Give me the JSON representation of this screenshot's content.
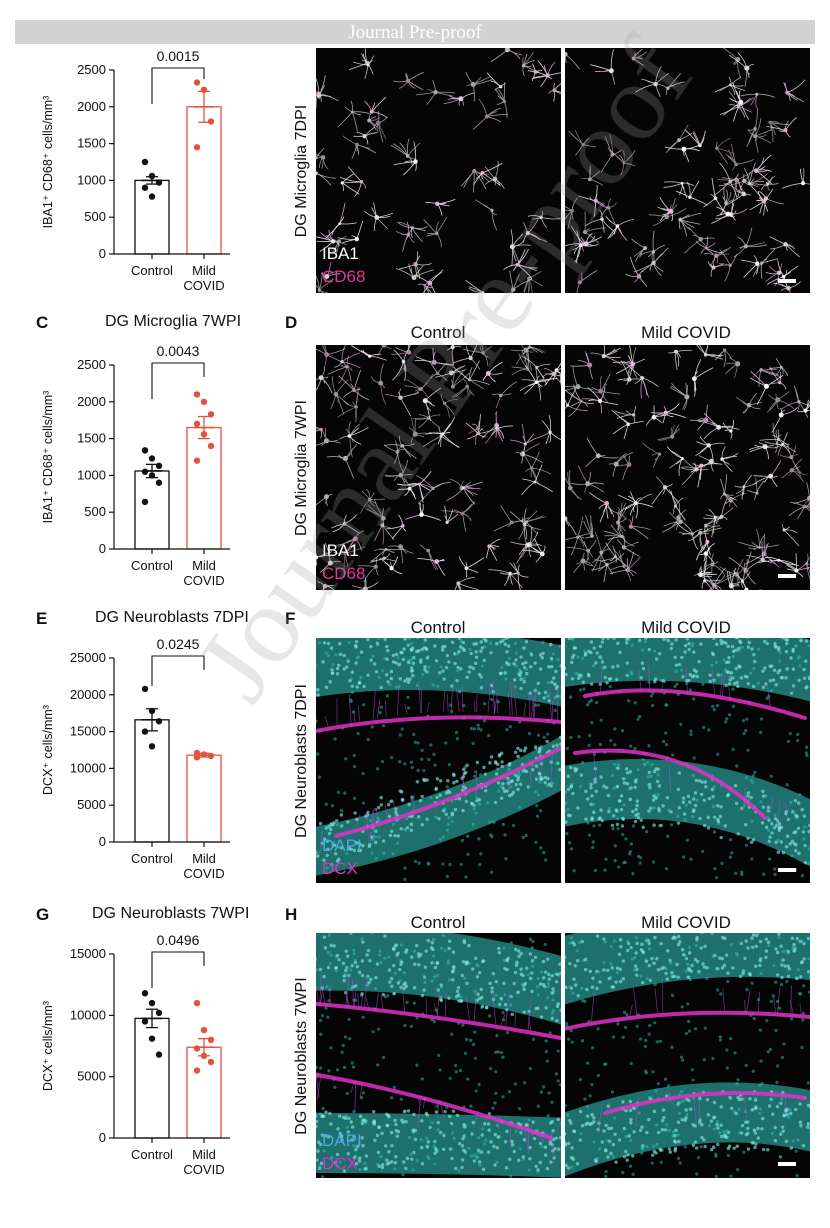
{
  "banner": {
    "text": "Journal Pre-proof"
  },
  "watermark": "Journal Pre-proof",
  "colors": {
    "control": "#111111",
    "covid": "#e0533d",
    "dapi": "#37d0c8",
    "dcx": "#e030c8",
    "iba1": "#ffffff",
    "cd68": "#e0389a"
  },
  "panels": {
    "C": {
      "letter": "C",
      "title": "DG Microglia 7WPI"
    },
    "D": {
      "letter": "D",
      "left_title": "Control",
      "right_title": "Mild COVID",
      "row_label": "DG Microglia 7WPI",
      "channel1": "IBA1",
      "channel2": "CD68"
    },
    "E": {
      "letter": "E",
      "title": "DG Neuroblasts 7DPI"
    },
    "F": {
      "letter": "F",
      "left_title": "Control",
      "right_title": "Mild COVID",
      "row_label": "DG Neuroblasts 7DPI",
      "channel1": "DAPI",
      "channel2": "DCX"
    },
    "G": {
      "letter": "G",
      "title": "DG Neuroblasts 7WPI"
    },
    "H": {
      "letter": "H",
      "left_title": "Control",
      "right_title": "Mild COVID",
      "row_label": "DG Neuroblasts 7WPI",
      "channel1": "DAPI",
      "channel2": "DCX"
    },
    "B": {
      "row_label": "DG Microglia 7DPI",
      "channel1": "IBA1",
      "channel2": "CD68"
    }
  },
  "chart_data": [
    {
      "type": "bar",
      "panel": "A",
      "title": "",
      "ylabel": "IBA1⁺ CD68⁺ cells/mm³",
      "categories": [
        "Control",
        "Mild COVID"
      ],
      "category_lines": [
        [
          "Control"
        ],
        [
          "Mild",
          "COVID"
        ]
      ],
      "ylim": [
        0,
        2500
      ],
      "yticks": [
        0,
        500,
        1000,
        1500,
        2000,
        2500
      ],
      "values": [
        1000,
        2000
      ],
      "errors": [
        50,
        210
      ],
      "points": [
        [
          1250,
          1060,
          970,
          900,
          780
        ],
        [
          2330,
          2230,
          1800,
          1450
        ]
      ],
      "pvalue": "0.0015"
    },
    {
      "type": "bar",
      "panel": "C",
      "title": "DG Microglia 7WPI",
      "ylabel": "IBA1⁺ CD68⁺ cells/mm³",
      "categories": [
        "Control",
        "Mild COVID"
      ],
      "category_lines": [
        [
          "Control"
        ],
        [
          "Mild",
          "COVID"
        ]
      ],
      "ylim": [
        0,
        2500
      ],
      "yticks": [
        0,
        500,
        1000,
        1500,
        2000,
        2500
      ],
      "values": [
        1060,
        1650
      ],
      "errors": [
        90,
        150
      ],
      "points": [
        [
          1340,
          1230,
          1130,
          1050,
          1000,
          900,
          640
        ],
        [
          2100,
          2000,
          1830,
          1700,
          1560,
          1400,
          1200
        ]
      ],
      "pvalue": "0.0043"
    },
    {
      "type": "bar",
      "panel": "E",
      "title": "DG Neuroblasts 7DPI",
      "ylabel": "DCX⁺ cells/mm³",
      "categories": [
        "Control",
        "Mild COVID"
      ],
      "category_lines": [
        [
          "Control"
        ],
        [
          "Mild",
          "COVID"
        ]
      ],
      "ylim": [
        0,
        25000
      ],
      "yticks": [
        0,
        5000,
        10000,
        15000,
        20000,
        25000
      ],
      "values": [
        16600,
        11800
      ],
      "errors": [
        1500,
        250
      ],
      "points": [
        [
          20800,
          17800,
          16400,
          15000,
          13000
        ],
        [
          12100,
          11900,
          11700,
          11500
        ]
      ],
      "pvalue": "0.0245"
    },
    {
      "type": "bar",
      "panel": "G",
      "title": "DG Neuroblasts 7WPI",
      "ylabel": "DCX⁺ cells/mm³",
      "categories": [
        "Control",
        "Mild COVID"
      ],
      "category_lines": [
        [
          "Control"
        ],
        [
          "Mild",
          "COVID"
        ]
      ],
      "ylim": [
        0,
        15000
      ],
      "yticks": [
        0,
        5000,
        10000,
        15000
      ],
      "values": [
        9750,
        7400
      ],
      "errors": [
        750,
        700
      ],
      "points": [
        [
          11800,
          11000,
          10200,
          9500,
          8100,
          6800
        ],
        [
          11000,
          8800,
          8000,
          7300,
          6700,
          6200,
          5500
        ]
      ],
      "pvalue": "0.0496"
    }
  ]
}
